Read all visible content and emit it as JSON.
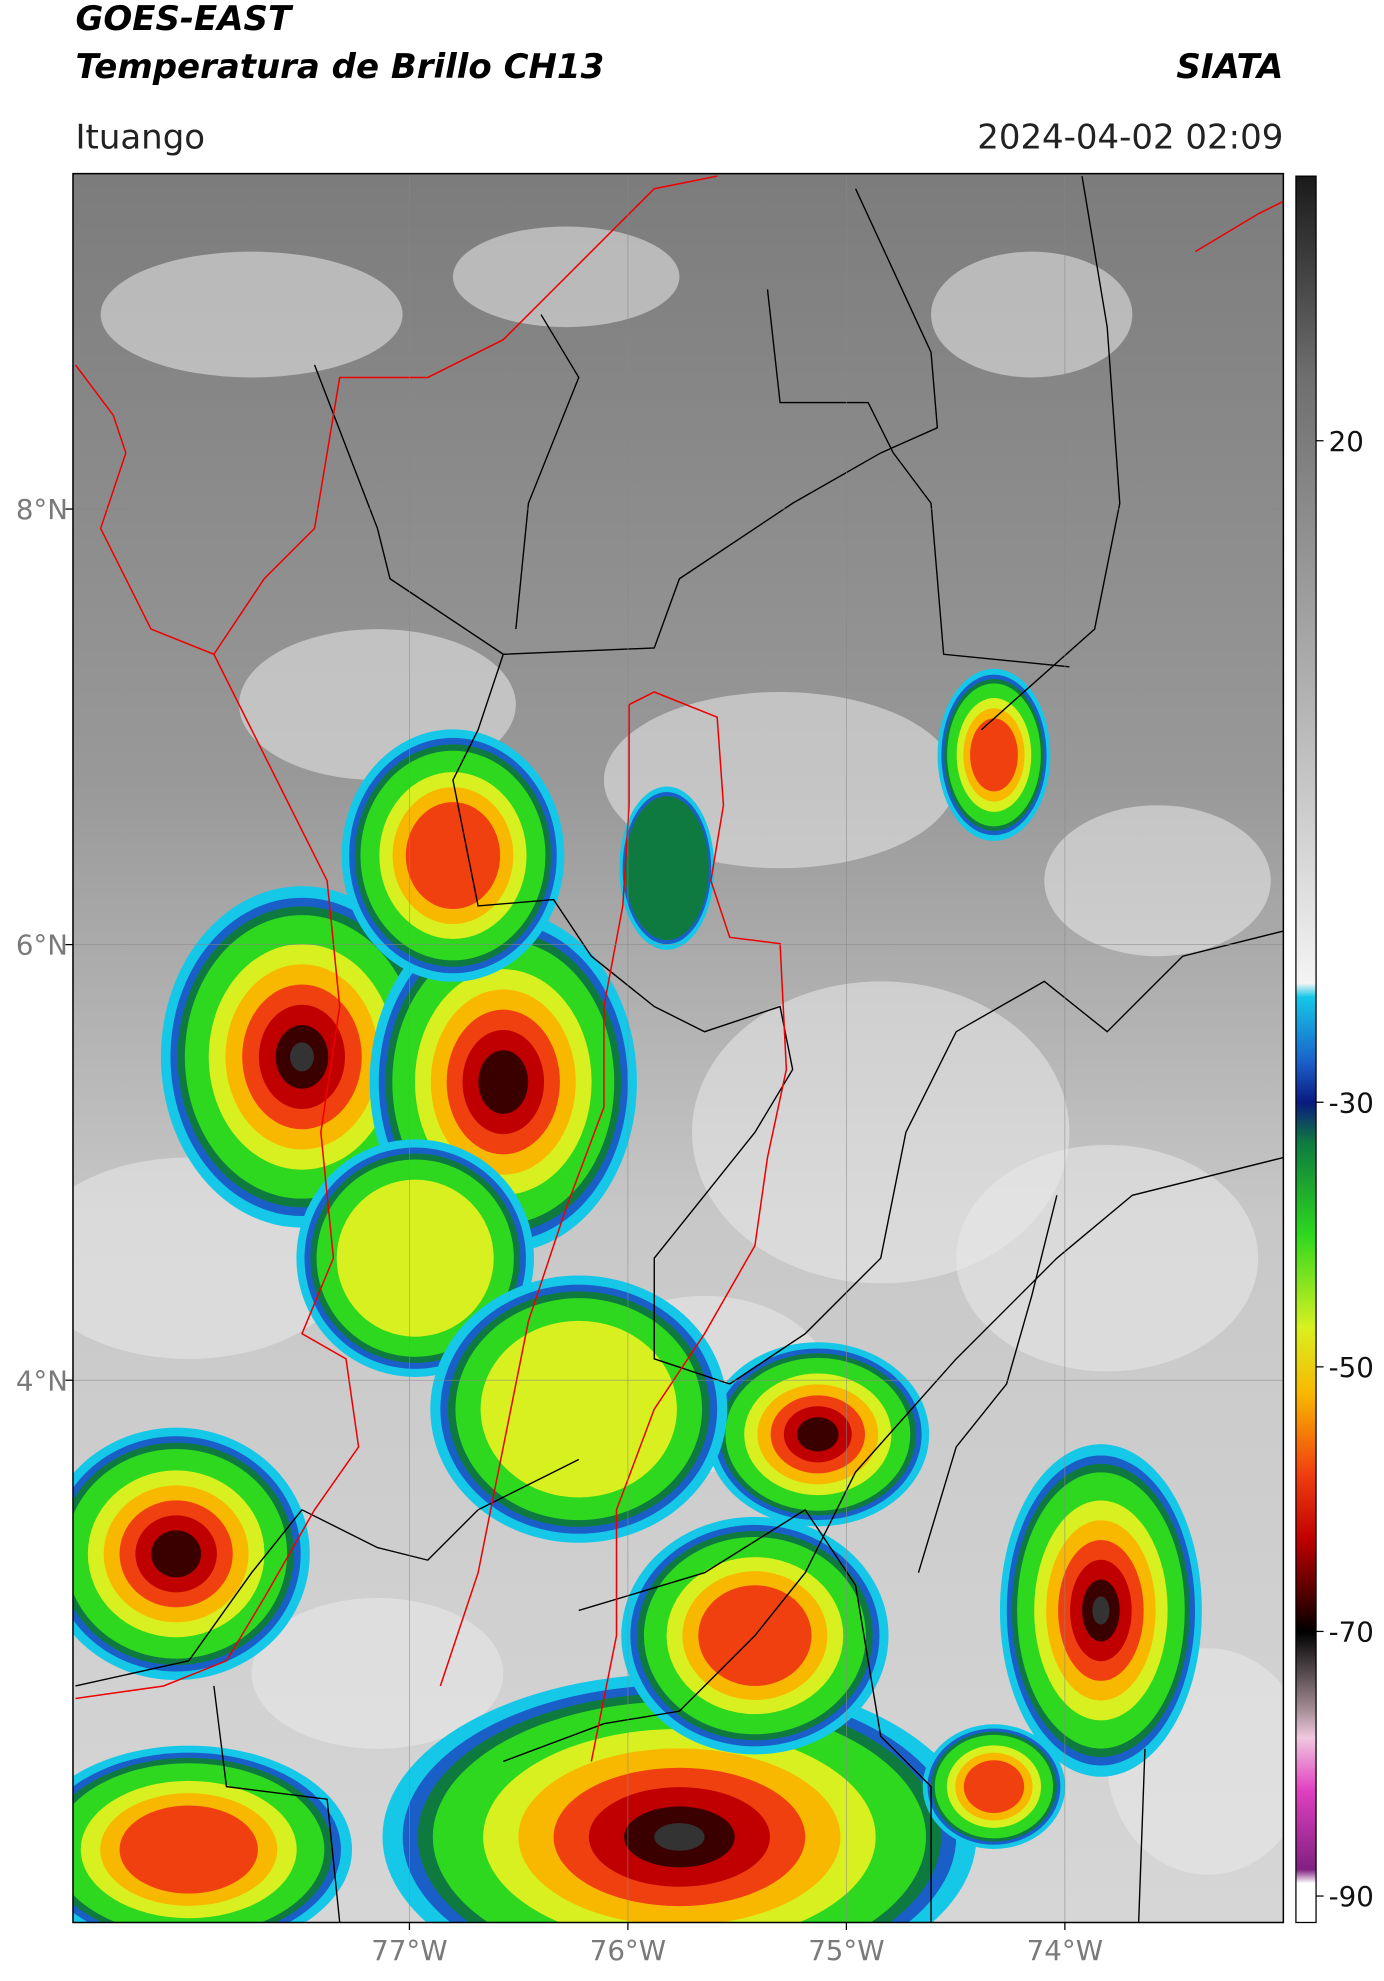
{
  "header": {
    "satellite": "GOES-EAST",
    "product": "Temperatura de Brillo CH13",
    "source": "SIATA",
    "region": "Ituango",
    "datetime": "2024-04-02 02:09"
  },
  "map": {
    "lon_range": [
      -78.54,
      -73.0
    ],
    "lat_range": [
      1.51,
      9.54
    ],
    "lon_ticks": [
      {
        "value": -77,
        "label": "77°W"
      },
      {
        "value": -76,
        "label": "76°W"
      },
      {
        "value": -75,
        "label": "75°W"
      },
      {
        "value": -74,
        "label": "74°W"
      }
    ],
    "lat_ticks": [
      {
        "value": 8,
        "label": "8°N"
      },
      {
        "value": 6,
        "label": "6°N"
      },
      {
        "value": 4,
        "label": "4°N"
      }
    ],
    "grid": true
  },
  "colorbar": {
    "range": [
      -92,
      40
    ],
    "ticks": [
      20,
      -30,
      -50,
      -70,
      -90
    ],
    "colormap": [
      {
        "value": 40,
        "color": "#1a1a1a"
      },
      {
        "value": 25,
        "color": "#6e6e6e"
      },
      {
        "value": 0,
        "color": "#b4b4b4"
      },
      {
        "value": -21,
        "color": "#f4f4f4"
      },
      {
        "value": -22,
        "color": "#16c8e8"
      },
      {
        "value": -27,
        "color": "#1a5fc8"
      },
      {
        "value": -30,
        "color": "#0a1a80"
      },
      {
        "value": -33,
        "color": "#0e7a40"
      },
      {
        "value": -40,
        "color": "#2ed81e"
      },
      {
        "value": -47,
        "color": "#d8f020"
      },
      {
        "value": -52,
        "color": "#f8b800"
      },
      {
        "value": -58,
        "color": "#f04010"
      },
      {
        "value": -63,
        "color": "#c00000"
      },
      {
        "value": -68,
        "color": "#3a0000"
      },
      {
        "value": -70,
        "color": "#000000"
      },
      {
        "value": -76,
        "color": "#a89098"
      },
      {
        "value": -78,
        "color": "#f0c8e0"
      },
      {
        "value": -82,
        "color": "#e040c0"
      },
      {
        "value": -88,
        "color": "#802080"
      },
      {
        "value": -89,
        "color": "#ffffff"
      },
      {
        "value": -92,
        "color": "#ffffff"
      }
    ]
  }
}
